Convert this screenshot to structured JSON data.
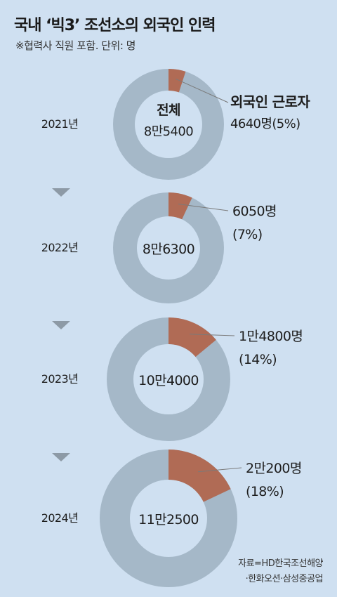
{
  "header": {
    "title": "국내 ‘빅3’ 조선소의 외국인 인력",
    "subtitle": "※협력사 직원 포함. 단위: 명"
  },
  "source": {
    "line1": "자료=HD한국조선해양",
    "line2": "·한화오션·삼성중공업"
  },
  "colors": {
    "background": "#cfe0f1",
    "total": "#a5b8c8",
    "foreign": "#b06b55",
    "leader_line": "#7a7a7a",
    "arrow": "#8d9aa6"
  },
  "chart_data": {
    "type": "pie",
    "donut": true,
    "unit": "명",
    "total_label": "전체",
    "foreign_label": "외국인 근로자",
    "years": [
      {
        "year_label": "2021년",
        "total": 85400,
        "total_text": "8만5400",
        "foreign": 4640,
        "foreign_text": "4640명",
        "pct": 5,
        "pct_text": "(5%)"
      },
      {
        "year_label": "2022년",
        "total": 86300,
        "total_text": "8만6300",
        "foreign": 6050,
        "foreign_text": "6050명",
        "pct": 7,
        "pct_text": "(7%)"
      },
      {
        "year_label": "2023년",
        "total": 104000,
        "total_text": "10만4000",
        "foreign": 14800,
        "foreign_text": "1만4800명",
        "pct": 14,
        "pct_text": "(14%)"
      },
      {
        "year_label": "2024년",
        "total": 112500,
        "total_text": "11만2500",
        "foreign": 20200,
        "foreign_text": "2만200명",
        "pct": 18,
        "pct_text": "(18%)"
      }
    ]
  }
}
